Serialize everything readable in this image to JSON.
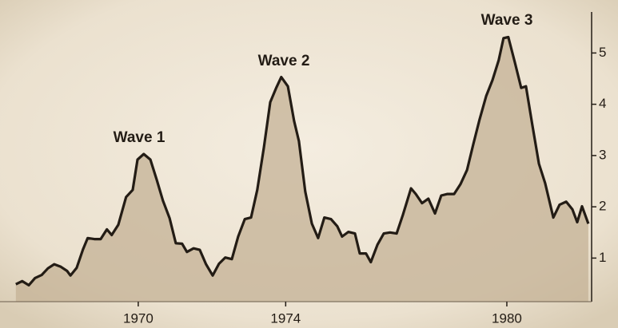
{
  "chart_data": {
    "type": "area",
    "annotations": [
      "Wave 1",
      "Wave 2",
      "Wave 3"
    ],
    "x": [
      1966.68,
      1966.85,
      1967.03,
      1967.2,
      1967.38,
      1967.55,
      1967.72,
      1967.9,
      1968.07,
      1968.16,
      1968.33,
      1968.5,
      1968.63,
      1968.81,
      1968.98,
      1969.15,
      1969.28,
      1969.46,
      1969.67,
      1969.85,
      1969.98,
      1970.15,
      1970.33,
      1970.5,
      1970.67,
      1970.85,
      1971.02,
      1971.19,
      1971.32,
      1971.5,
      1971.67,
      1971.84,
      1972.02,
      1972.19,
      1972.36,
      1972.54,
      1972.71,
      1972.89,
      1973.06,
      1973.23,
      1973.41,
      1973.58,
      1973.75,
      1973.88,
      1974.06,
      1974.23,
      1974.36,
      1974.53,
      1974.71,
      1974.88,
      1975.05,
      1975.23,
      1975.4,
      1975.53,
      1975.7,
      1975.88,
      1976.01,
      1976.18,
      1976.31,
      1976.49,
      1976.66,
      1976.83,
      1977.01,
      1977.18,
      1977.4,
      1977.53,
      1977.7,
      1977.87,
      1978.05,
      1978.22,
      1978.39,
      1978.57,
      1978.74,
      1978.92,
      1979.09,
      1979.26,
      1979.44,
      1979.61,
      1979.78,
      1979.91,
      1980.04,
      1980.22,
      1980.39,
      1980.52,
      1980.69,
      1980.87,
      1981.04,
      1981.26,
      1981.43,
      1981.61,
      1981.78,
      1981.91,
      1982.04,
      1982.21
    ],
    "values": [
      0.49,
      0.55,
      0.47,
      0.61,
      0.67,
      0.8,
      0.88,
      0.83,
      0.75,
      0.66,
      0.81,
      1.17,
      1.39,
      1.37,
      1.37,
      1.56,
      1.45,
      1.65,
      2.19,
      2.33,
      2.92,
      3.03,
      2.92,
      2.53,
      2.12,
      1.78,
      1.29,
      1.28,
      1.12,
      1.19,
      1.16,
      0.88,
      0.66,
      0.89,
      1.01,
      0.98,
      1.42,
      1.76,
      1.79,
      2.33,
      3.16,
      4.04,
      4.33,
      4.53,
      4.35,
      3.67,
      3.28,
      2.3,
      1.67,
      1.39,
      1.79,
      1.76,
      1.62,
      1.42,
      1.51,
      1.48,
      1.09,
      1.09,
      0.92,
      1.26,
      1.48,
      1.5,
      1.48,
      1.84,
      2.36,
      2.25,
      2.07,
      2.16,
      1.87,
      2.22,
      2.25,
      2.25,
      2.44,
      2.72,
      3.22,
      3.7,
      4.16,
      4.47,
      4.86,
      5.29,
      5.31,
      4.81,
      4.32,
      4.35,
      3.6,
      2.84,
      2.46,
      1.79,
      2.04,
      2.1,
      1.95,
      1.7,
      2.01,
      1.67
    ],
    "color": "#231c15",
    "fill": "#c4b296",
    "xlim": [
      1966.64,
      1982.3
    ],
    "xticks": [
      1970,
      1974,
      1980
    ],
    "ylim": [
      0.15,
      5.8
    ],
    "yticks": [
      1,
      2,
      3,
      4,
      5
    ],
    "y_axis_side": "right"
  }
}
